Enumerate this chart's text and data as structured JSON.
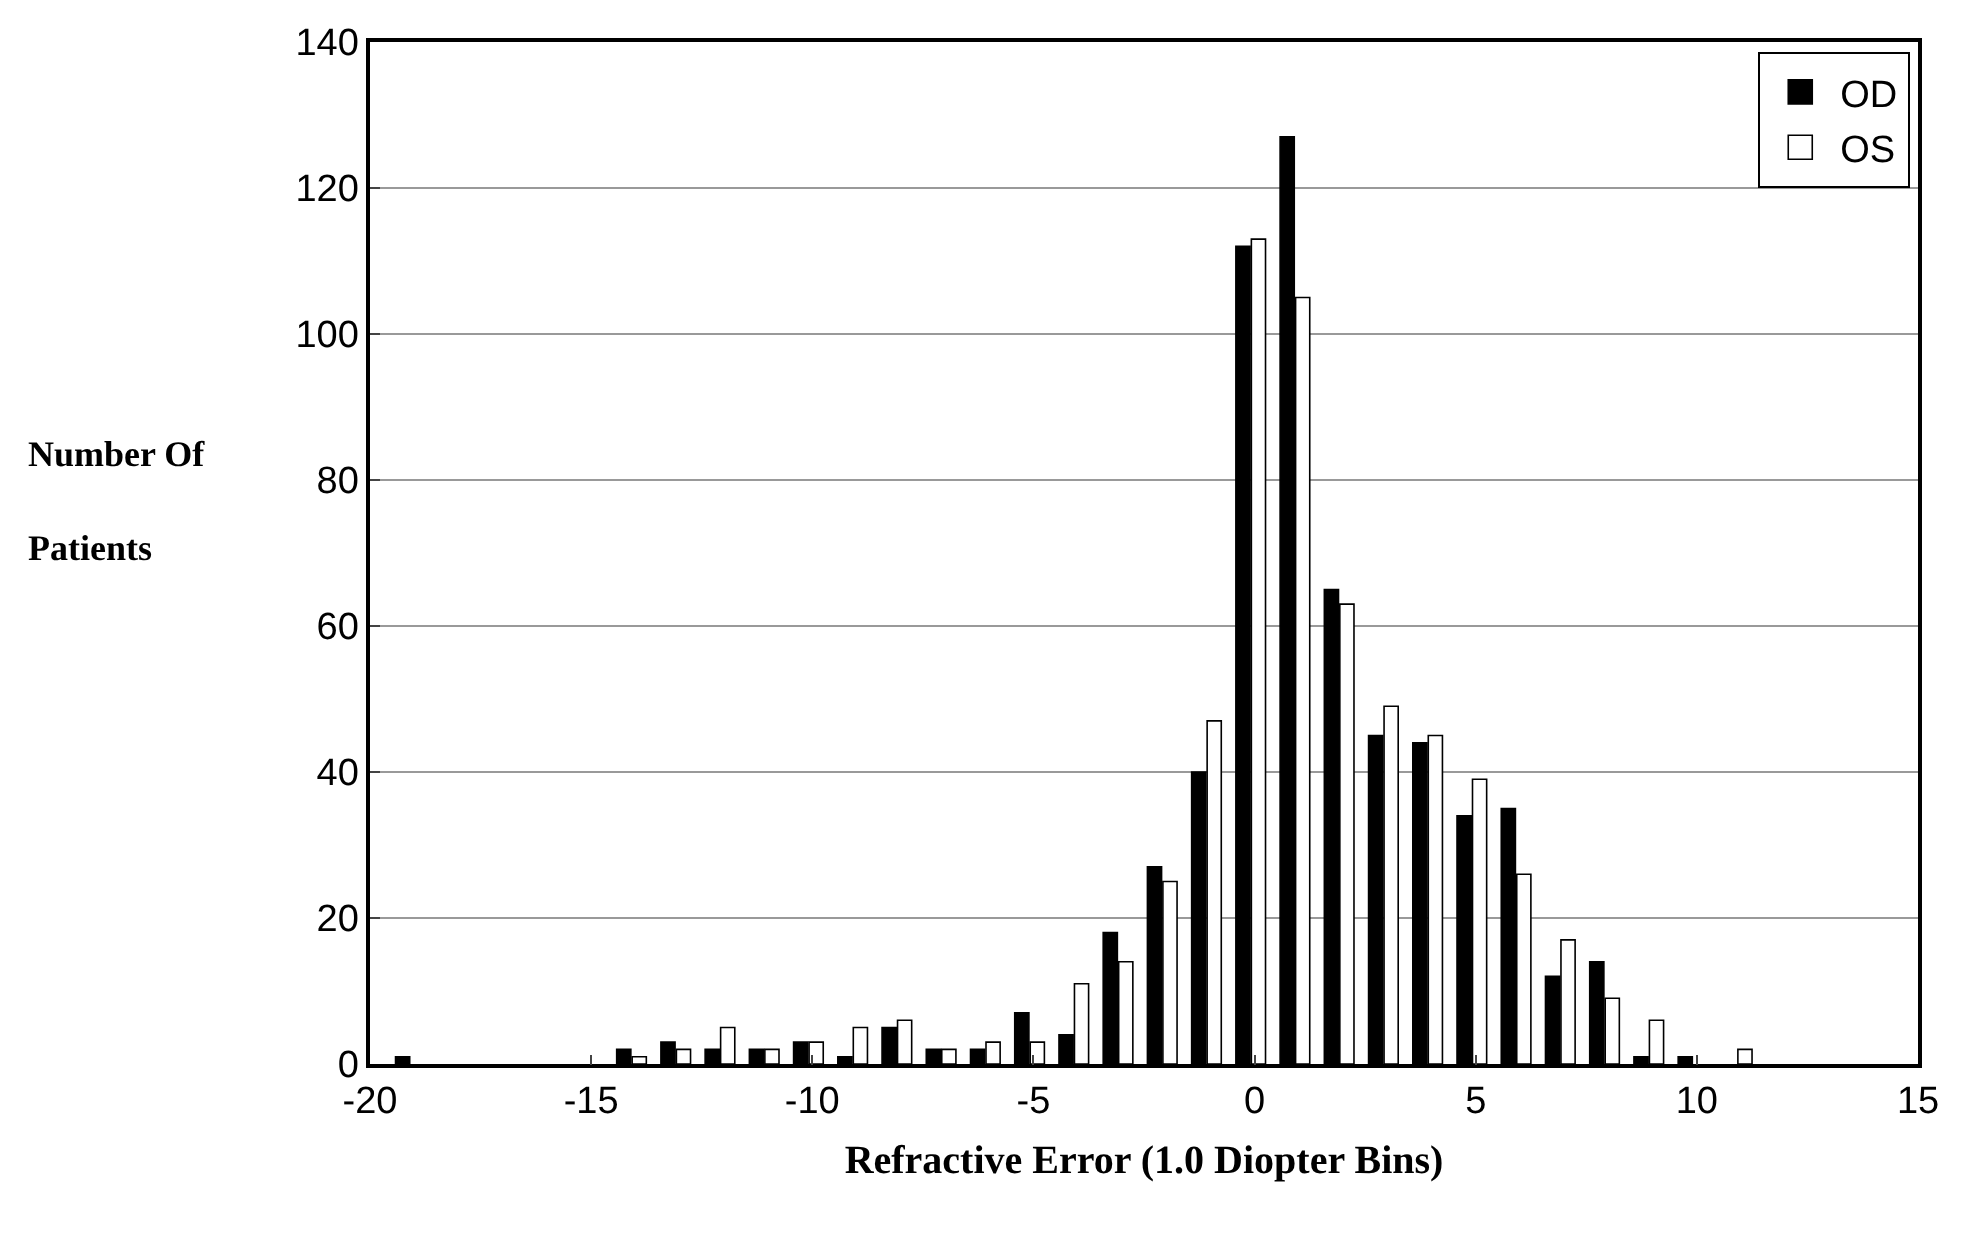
{
  "chart_data": {
    "type": "bar",
    "xlabel": "Refractive Error (1.0 Diopter Bins)",
    "ylabel": "Number Of\nPatients",
    "x": [
      -19,
      -18,
      -17,
      -16,
      -15,
      -14,
      -13,
      -12,
      -11,
      -10,
      -9,
      -8,
      -7,
      -6,
      -5,
      -4,
      -3,
      -2,
      -1,
      0,
      1,
      2,
      3,
      4,
      5,
      6,
      7,
      8,
      9,
      10,
      11,
      12,
      13,
      14
    ],
    "series": [
      {
        "name": "OD",
        "color": "#000000",
        "values": [
          1,
          0,
          0,
          0,
          0,
          2,
          3,
          2,
          2,
          3,
          1,
          5,
          2,
          2,
          7,
          4,
          18,
          27,
          40,
          112,
          127,
          65,
          45,
          44,
          34,
          35,
          12,
          14,
          1,
          1,
          0,
          0,
          0,
          0
        ]
      },
      {
        "name": "OS",
        "color": "#ffffff",
        "values": [
          0,
          0,
          0,
          0,
          0,
          1,
          2,
          5,
          2,
          3,
          5,
          6,
          2,
          3,
          3,
          11,
          14,
          25,
          47,
          113,
          105,
          63,
          49,
          45,
          39,
          26,
          17,
          9,
          6,
          0,
          2,
          0,
          0,
          0
        ]
      }
    ],
    "xlim": [
      -20,
      15
    ],
    "xticks": [
      -20,
      -15,
      -10,
      -5,
      0,
      5,
      10,
      15
    ],
    "ylim": [
      0,
      140
    ],
    "yticks": [
      0,
      20,
      40,
      60,
      80,
      100,
      120,
      140
    ],
    "grid": "y",
    "legend": "top right"
  }
}
